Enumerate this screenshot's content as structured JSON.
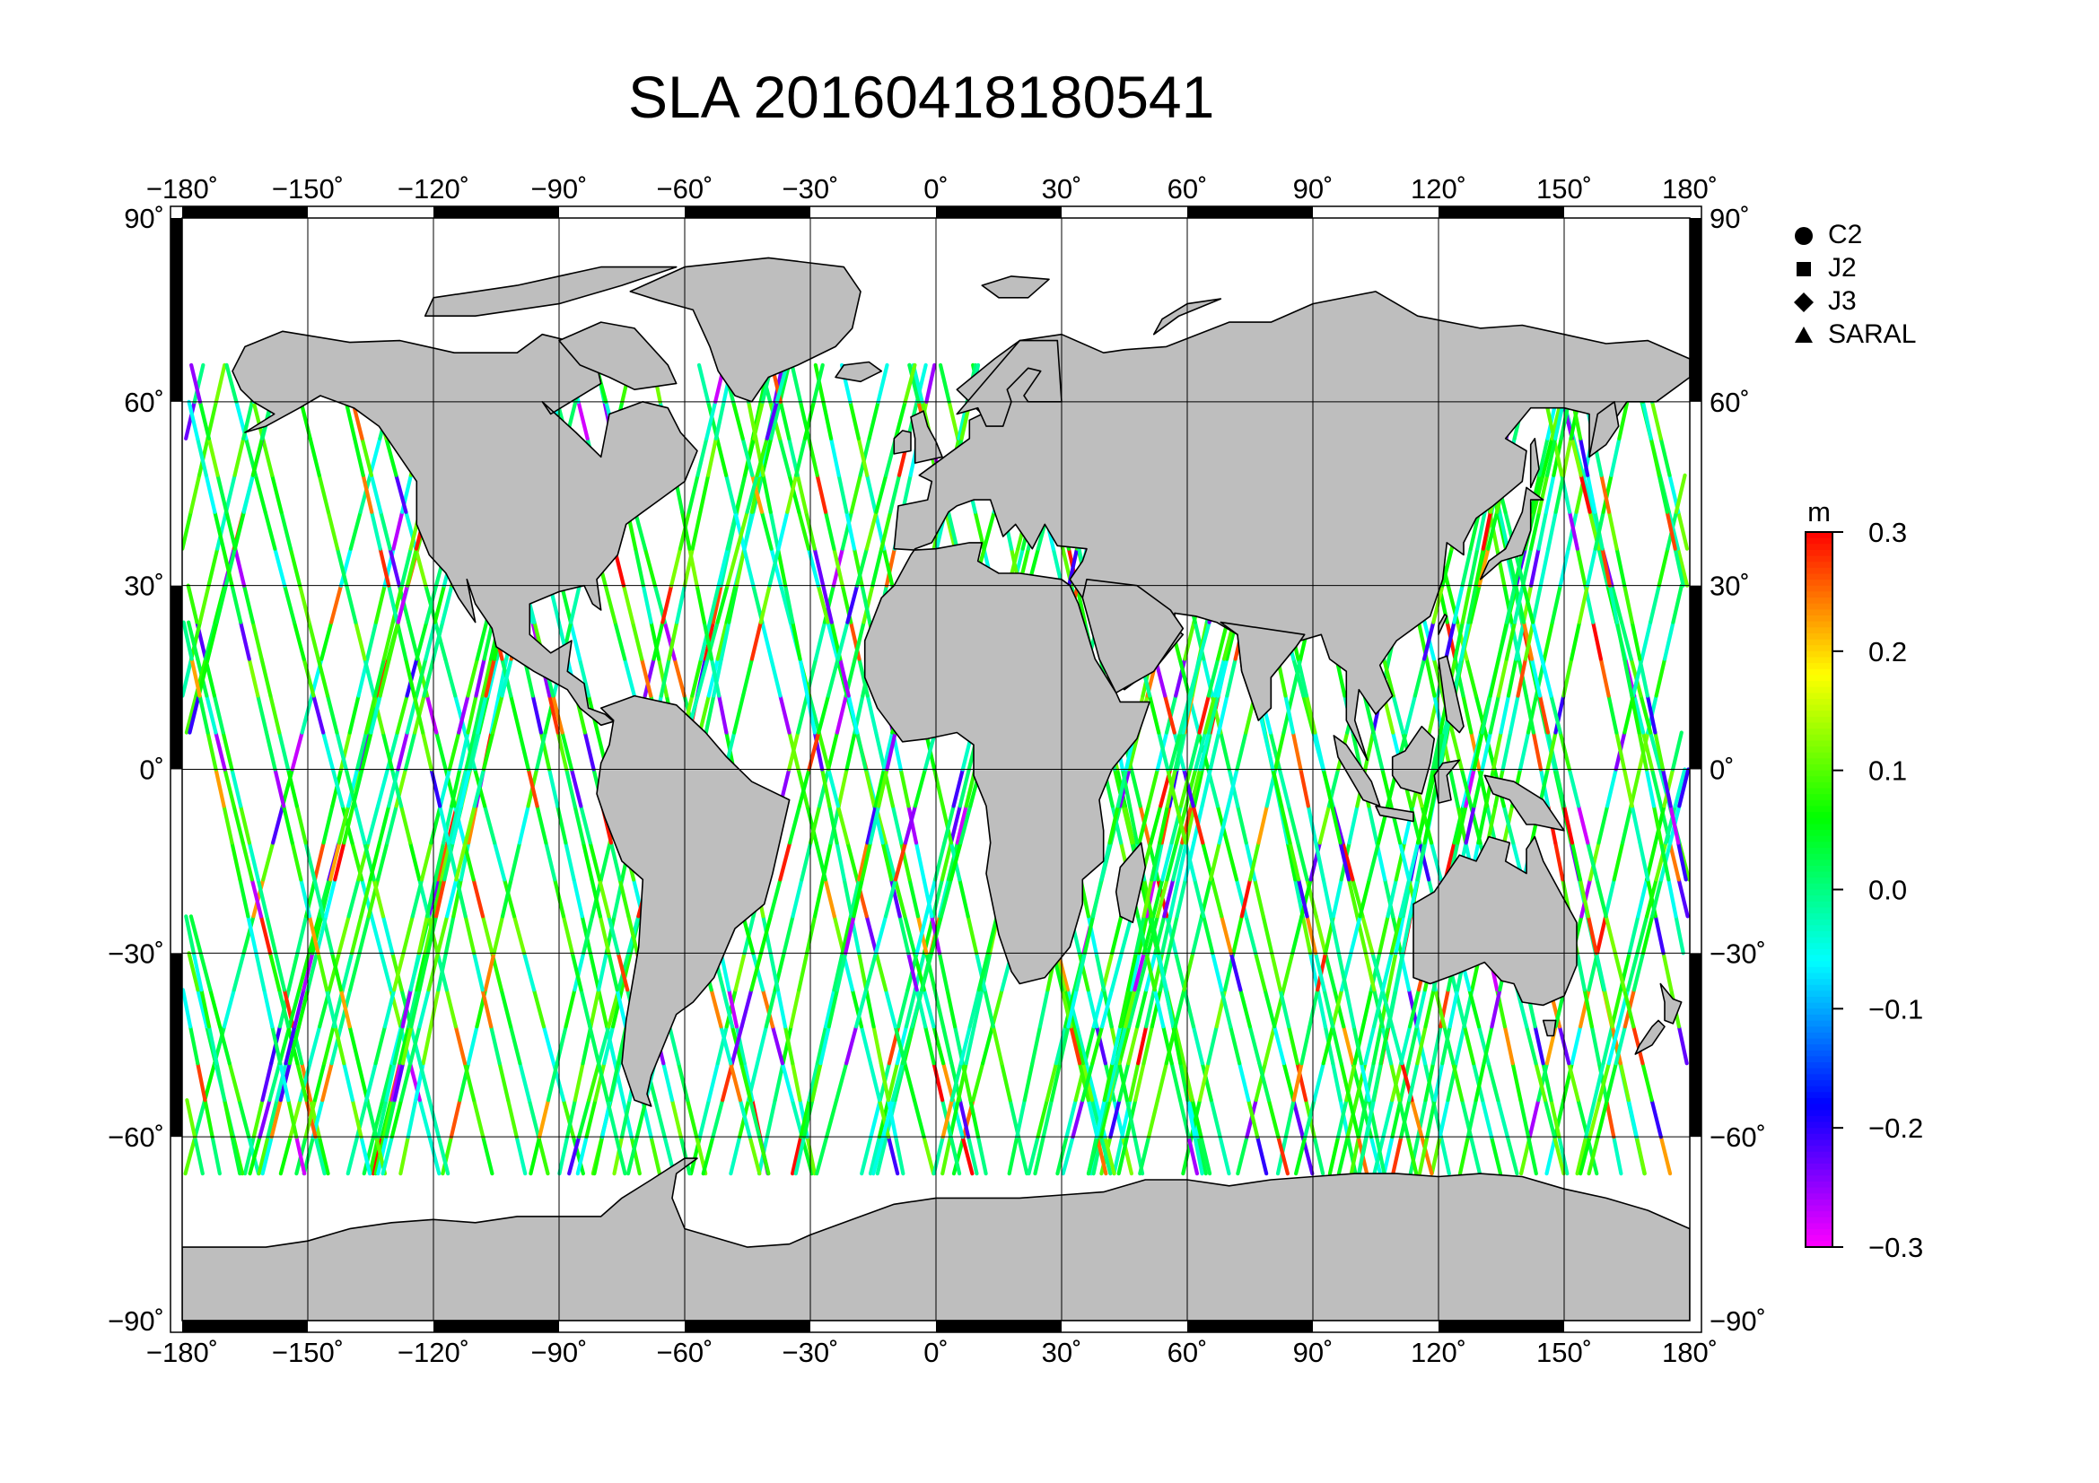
{
  "title": "SLA 20160418180541",
  "map": {
    "projection": "equirectangular",
    "lon_range": [
      -180,
      180
    ],
    "lat_range": [
      -90,
      90
    ],
    "lon_ticks": [
      -180,
      -150,
      -120,
      -90,
      -60,
      -30,
      0,
      30,
      60,
      90,
      120,
      150,
      180
    ],
    "lat_ticks": [
      90,
      60,
      30,
      0,
      -30,
      -60,
      -90
    ],
    "lon_tick_labels": [
      "−180˚",
      "−150˚",
      "−120˚",
      "−90˚",
      "−60˚",
      "−30˚",
      "0˚",
      "30˚",
      "60˚",
      "90˚",
      "120˚",
      "150˚",
      "180˚"
    ],
    "lat_tick_labels": [
      "90˚",
      "60˚",
      "30˚",
      "0˚",
      "−30˚",
      "−60˚",
      "−90˚"
    ],
    "track_lat_limit": 66,
    "land_color": "#bebebe",
    "ocean_color": "#ffffff"
  },
  "legend": {
    "items": [
      {
        "label": "C2",
        "symbol": "circle"
      },
      {
        "label": "J2",
        "symbol": "square"
      },
      {
        "label": "J3",
        "symbol": "diamond"
      },
      {
        "label": "SARAL",
        "symbol": "triangle"
      }
    ]
  },
  "colorbar": {
    "unit": "m",
    "min": -0.3,
    "max": 0.3,
    "tick_labels": [
      "0.3",
      "0.2",
      "0.1",
      "0.0",
      "−0.1",
      "−0.2",
      "−0.3"
    ],
    "tick_values": [
      0.3,
      0.2,
      0.1,
      0.0,
      -0.1,
      -0.2,
      -0.3
    ],
    "colors": [
      "#ff00ff",
      "#8000ff",
      "#0000ff",
      "#0080ff",
      "#00ffff",
      "#00ff80",
      "#00ff00",
      "#80ff00",
      "#ffff00",
      "#ff8000",
      "#ff0000"
    ]
  }
}
